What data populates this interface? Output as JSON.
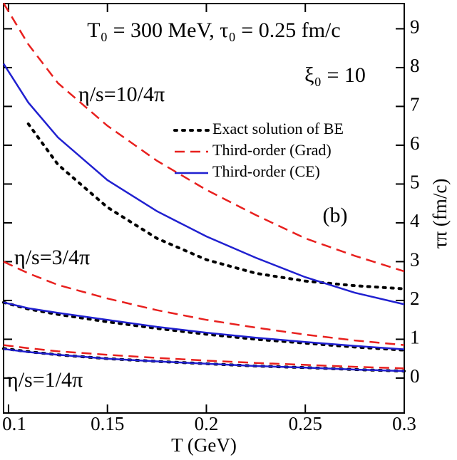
{
  "chart_data": {
    "type": "line",
    "annotations": [
      "T₀ = 300 MeV,  τ₀ = 0.25 fm/c",
      "ξ₀ = 10",
      "η/s=10/4π",
      "η/s=3/4π",
      "η/s=1/4π",
      "(b)"
    ],
    "xlabel": "T (GeV)",
    "ylabel": "τπ (fm/c)",
    "x": [
      0.0975,
      0.11,
      0.125,
      0.15,
      0.175,
      0.2,
      0.225,
      0.25,
      0.275,
      0.3
    ],
    "series": [
      {
        "name": "Exact solution of BE",
        "color": "#000000",
        "style": "dotted",
        "values": [
          null,
          6.55,
          5.5,
          4.4,
          3.6,
          3.05,
          2.7,
          2.5,
          2.38,
          2.3
        ]
      },
      {
        "name": "Third-order (Grad)",
        "color": "#e8201e",
        "style": "dashed",
        "values": [
          9.66,
          8.6,
          7.6,
          6.5,
          5.6,
          4.85,
          4.2,
          3.6,
          3.15,
          2.75
        ]
      },
      {
        "name": "Third-order (CE)",
        "color": "#2020d0",
        "style": "solid",
        "values": [
          8.1,
          7.1,
          6.2,
          5.1,
          4.3,
          3.65,
          3.1,
          2.6,
          2.2,
          1.9
        ]
      },
      {
        "color": "#000000",
        "style": "dotted",
        "values": [
          1.95,
          1.78,
          1.64,
          1.45,
          1.28,
          1.13,
          1.0,
          0.9,
          0.8,
          0.72
        ]
      },
      {
        "color": "#e8201e",
        "style": "dashed",
        "values": [
          3.0,
          2.7,
          2.4,
          2.05,
          1.75,
          1.5,
          1.3,
          1.12,
          0.97,
          0.85
        ]
      },
      {
        "color": "#2020d0",
        "style": "solid",
        "values": [
          1.95,
          1.8,
          1.68,
          1.5,
          1.32,
          1.17,
          1.04,
          0.93,
          0.83,
          0.74
        ]
      },
      {
        "color": "#000000",
        "style": "dotted",
        "values": [
          0.76,
          0.68,
          0.6,
          0.5,
          0.43,
          0.37,
          0.31,
          0.27,
          0.22,
          0.18
        ]
      },
      {
        "color": "#e8201e",
        "style": "dashed",
        "values": [
          0.85,
          0.77,
          0.69,
          0.6,
          0.52,
          0.45,
          0.39,
          0.34,
          0.29,
          0.25
        ]
      },
      {
        "color": "#2020d0",
        "style": "solid",
        "values": [
          0.75,
          0.67,
          0.6,
          0.5,
          0.43,
          0.37,
          0.31,
          0.27,
          0.22,
          0.18
        ]
      }
    ],
    "xlim": [
      0.0975,
      0.3
    ],
    "xticks": [
      0.1,
      0.15,
      0.2,
      0.25,
      0.3
    ],
    "ylim": [
      -0.9,
      9.65
    ],
    "yticks": [
      0,
      1,
      2,
      3,
      4,
      5,
      6,
      7,
      8,
      9
    ],
    "y_axis_side": "right",
    "grid": false
  }
}
